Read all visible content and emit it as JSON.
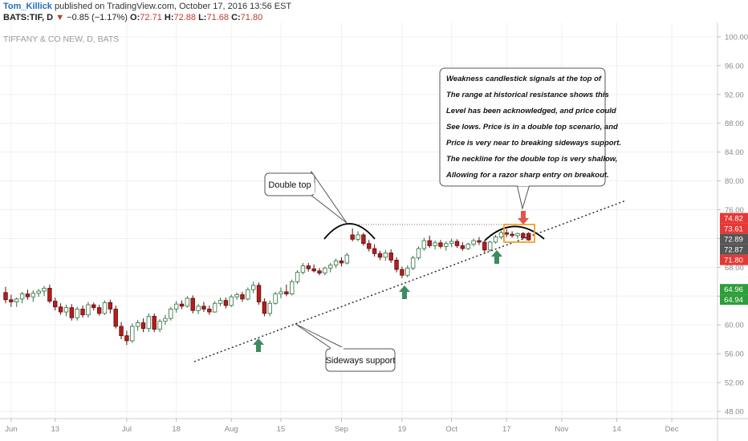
{
  "header": {
    "author": "Tom_Killick",
    "published": "published on TradingView.com, October 17, 2016 13:56 EST",
    "symbol": "BATS:TIF, D",
    "change": "−0.85 (−1.17%)",
    "open_label": "O:",
    "open": "72.71",
    "high_label": "H:",
    "high": "72.88",
    "low_label": "L:",
    "low": "71.68",
    "close_label": "C:",
    "close": "71.80"
  },
  "colors": {
    "up_fill": "#ffffff",
    "up_border": "#2f6f3e",
    "down_fill": "#b71c1c",
    "axis_text": "#8a8a8a",
    "arrow_green": "#3d8b5f",
    "arrow_red": "#e0564a",
    "highlight_box": "#f0a030"
  },
  "chart_data": {
    "type": "candlestick",
    "title": "TIFFANY & CO NEW, D, BATS",
    "ylim": [
      47,
      102
    ],
    "y_ticks": [
      "48.00",
      "52.00",
      "56.00",
      "60.00",
      "64.00",
      "68.00",
      "72.00",
      "76.00",
      "80.00",
      "84.00",
      "88.00",
      "92.00",
      "96.00",
      "100.00"
    ],
    "x_tick_labels": [
      {
        "label": "Jun",
        "idx": 1
      },
      {
        "label": "13",
        "idx": 9
      },
      {
        "label": "Jul",
        "idx": 22
      },
      {
        "label": "18",
        "idx": 31
      },
      {
        "label": "Aug",
        "idx": 41
      },
      {
        "label": "15",
        "idx": 50
      },
      {
        "label": "Sep",
        "idx": 61
      },
      {
        "label": "19",
        "idx": 72
      },
      {
        "label": "Oct",
        "idx": 81
      },
      {
        "label": "17",
        "idx": 91
      },
      {
        "label": "Nov",
        "idx": 101
      },
      {
        "label": "14",
        "idx": 111
      },
      {
        "label": "Dec",
        "idx": 121
      }
    ],
    "price_labels": [
      {
        "text": "74.82",
        "value": 74.82,
        "bg": "#e53935"
      },
      {
        "text": "73.61",
        "value": 73.61,
        "bg": "#e53935"
      },
      {
        "text": "72.89",
        "value": 72.89,
        "bg": "#555555"
      },
      {
        "text": "72.87",
        "value": 72.87,
        "bg": "#555555"
      },
      {
        "text": "71.80",
        "value": 71.8,
        "bg": "#e53935"
      },
      {
        "text": "64.96",
        "value": 64.96,
        "bg": "#2e9e3a"
      },
      {
        "text": "64.94",
        "value": 64.94,
        "bg": "#2e9e3a"
      }
    ],
    "candles": [
      [
        64.5,
        65.3,
        63.0,
        63.5
      ],
      [
        63.5,
        64.2,
        62.5,
        63.2
      ],
      [
        63.2,
        63.8,
        62.5,
        63.6
      ],
      [
        63.6,
        64.6,
        63.0,
        64.3
      ],
      [
        64.3,
        64.9,
        63.5,
        63.9
      ],
      [
        63.9,
        64.8,
        63.2,
        64.4
      ],
      [
        64.4,
        65.0,
        63.9,
        64.7
      ],
      [
        64.7,
        65.4,
        64.0,
        65.1
      ],
      [
        65.1,
        65.6,
        63.0,
        63.3
      ],
      [
        63.3,
        63.8,
        62.0,
        62.5
      ],
      [
        62.5,
        63.0,
        61.4,
        61.8
      ],
      [
        61.8,
        62.8,
        61.2,
        62.4
      ],
      [
        62.4,
        62.9,
        60.6,
        61.0
      ],
      [
        61.0,
        62.5,
        60.6,
        62.2
      ],
      [
        62.2,
        62.7,
        61.0,
        61.4
      ],
      [
        61.4,
        63.2,
        61.0,
        62.8
      ],
      [
        62.8,
        63.1,
        62.0,
        62.4
      ],
      [
        62.4,
        62.8,
        61.3,
        61.6
      ],
      [
        61.6,
        63.4,
        61.4,
        63.1
      ],
      [
        63.1,
        63.5,
        61.6,
        62.2
      ],
      [
        62.2,
        62.7,
        59.5,
        59.8
      ],
      [
        59.8,
        60.4,
        58.0,
        58.5
      ],
      [
        58.5,
        59.2,
        57.2,
        57.8
      ],
      [
        57.8,
        60.2,
        57.5,
        59.8
      ],
      [
        59.8,
        60.7,
        59.2,
        60.3
      ],
      [
        60.3,
        60.9,
        59.0,
        59.5
      ],
      [
        59.5,
        61.6,
        59.0,
        61.2
      ],
      [
        61.2,
        61.6,
        59.0,
        59.4
      ],
      [
        59.4,
        60.8,
        59.0,
        60.5
      ],
      [
        60.5,
        61.4,
        60.0,
        60.9
      ],
      [
        60.9,
        62.5,
        60.6,
        62.2
      ],
      [
        62.2,
        63.3,
        61.7,
        62.9
      ],
      [
        62.9,
        63.4,
        62.2,
        62.6
      ],
      [
        62.6,
        64.0,
        62.4,
        63.7
      ],
      [
        63.7,
        64.1,
        61.6,
        62.0
      ],
      [
        62.0,
        62.9,
        61.5,
        62.6
      ],
      [
        62.6,
        63.2,
        61.8,
        62.2
      ],
      [
        62.2,
        62.7,
        61.4,
        61.8
      ],
      [
        61.8,
        63.3,
        61.7,
        63.0
      ],
      [
        63.0,
        63.8,
        62.6,
        63.4
      ],
      [
        63.4,
        63.8,
        62.3,
        62.7
      ],
      [
        62.7,
        64.2,
        62.5,
        63.9
      ],
      [
        63.9,
        64.5,
        63.5,
        64.2
      ],
      [
        64.2,
        64.6,
        63.2,
        63.6
      ],
      [
        63.6,
        65.2,
        63.4,
        64.9
      ],
      [
        64.9,
        66.0,
        64.4,
        65.5
      ],
      [
        65.5,
        65.9,
        62.8,
        63.2
      ],
      [
        63.2,
        63.7,
        61.2,
        61.6
      ],
      [
        61.6,
        63.4,
        61.2,
        63.0
      ],
      [
        63.0,
        64.6,
        62.8,
        64.3
      ],
      [
        64.3,
        65.2,
        63.7,
        64.6
      ],
      [
        64.6,
        65.6,
        64.0,
        64.3
      ],
      [
        64.3,
        66.3,
        64.1,
        66.0
      ],
      [
        66.0,
        67.6,
        65.7,
        67.3
      ],
      [
        67.3,
        68.6,
        67.0,
        68.2
      ],
      [
        68.2,
        68.6,
        67.4,
        67.8
      ],
      [
        67.8,
        68.4,
        67.3,
        67.5
      ],
      [
        67.5,
        67.9,
        66.9,
        67.2
      ],
      [
        67.2,
        68.1,
        66.9,
        67.9
      ],
      [
        67.9,
        68.6,
        67.3,
        68.3
      ],
      [
        68.3,
        69.2,
        67.9,
        68.9
      ],
      [
        68.9,
        69.4,
        68.1,
        68.6
      ],
      [
        68.6,
        70.0,
        68.4,
        69.7
      ],
      [
        72.5,
        73.4,
        71.6,
        71.9
      ],
      [
        71.9,
        73.0,
        71.6,
        72.5
      ],
      [
        72.5,
        72.8,
        71.0,
        71.3
      ],
      [
        71.3,
        71.8,
        70.2,
        70.6
      ],
      [
        70.6,
        71.2,
        69.5,
        69.9
      ],
      [
        69.9,
        70.3,
        69.0,
        69.4
      ],
      [
        69.4,
        70.4,
        68.9,
        70.0
      ],
      [
        70.0,
        70.5,
        68.6,
        69.0
      ],
      [
        69.0,
        69.4,
        67.3,
        67.7
      ],
      [
        67.7,
        68.1,
        66.5,
        66.9
      ],
      [
        66.9,
        68.3,
        66.6,
        67.9
      ],
      [
        67.9,
        69.6,
        67.6,
        69.3
      ],
      [
        69.3,
        70.9,
        69.0,
        70.6
      ],
      [
        70.6,
        72.1,
        70.3,
        71.7
      ],
      [
        71.7,
        72.4,
        70.7,
        71.0
      ],
      [
        71.0,
        71.7,
        70.5,
        71.4
      ],
      [
        71.4,
        71.8,
        70.6,
        70.9
      ],
      [
        70.9,
        71.6,
        70.3,
        71.3
      ],
      [
        71.3,
        72.0,
        70.8,
        71.6
      ],
      [
        71.6,
        71.9,
        70.7,
        71.0
      ],
      [
        71.0,
        71.5,
        70.3,
        70.6
      ],
      [
        70.6,
        71.4,
        70.4,
        71.2
      ],
      [
        71.2,
        72.0,
        70.9,
        71.7
      ],
      [
        71.7,
        72.2,
        71.1,
        71.5
      ],
      [
        71.5,
        71.7,
        70.0,
        70.4
      ],
      [
        70.4,
        71.7,
        70.2,
        71.5
      ],
      [
        71.5,
        72.5,
        71.3,
        72.2
      ],
      [
        72.2,
        73.1,
        71.9,
        72.8
      ],
      [
        72.8,
        73.3,
        72.2,
        72.6
      ],
      [
        72.6,
        73.0,
        72.1,
        72.4
      ],
      [
        72.4,
        72.8,
        72.0,
        72.7
      ],
      [
        72.7,
        72.9,
        71.9,
        72.1
      ],
      [
        72.71,
        72.88,
        71.68,
        71.8
      ]
    ],
    "annotations": [
      {
        "id": "double-top",
        "text": "Double top"
      },
      {
        "id": "sideways-support",
        "text": "Sideways support"
      },
      {
        "id": "weakness-note",
        "lines": [
          "Weakness candlestick signals at the top of",
          "The range at historical resistance shows this",
          "Level has been acknowledged, and price could",
          "See lows. Price is in a double top scenario, and",
          "Price is very near to breaking sideways support.",
          "The neckline for the double top is very shallow,",
          "Allowing for a razor sharp entry on breakout."
        ]
      }
    ]
  }
}
